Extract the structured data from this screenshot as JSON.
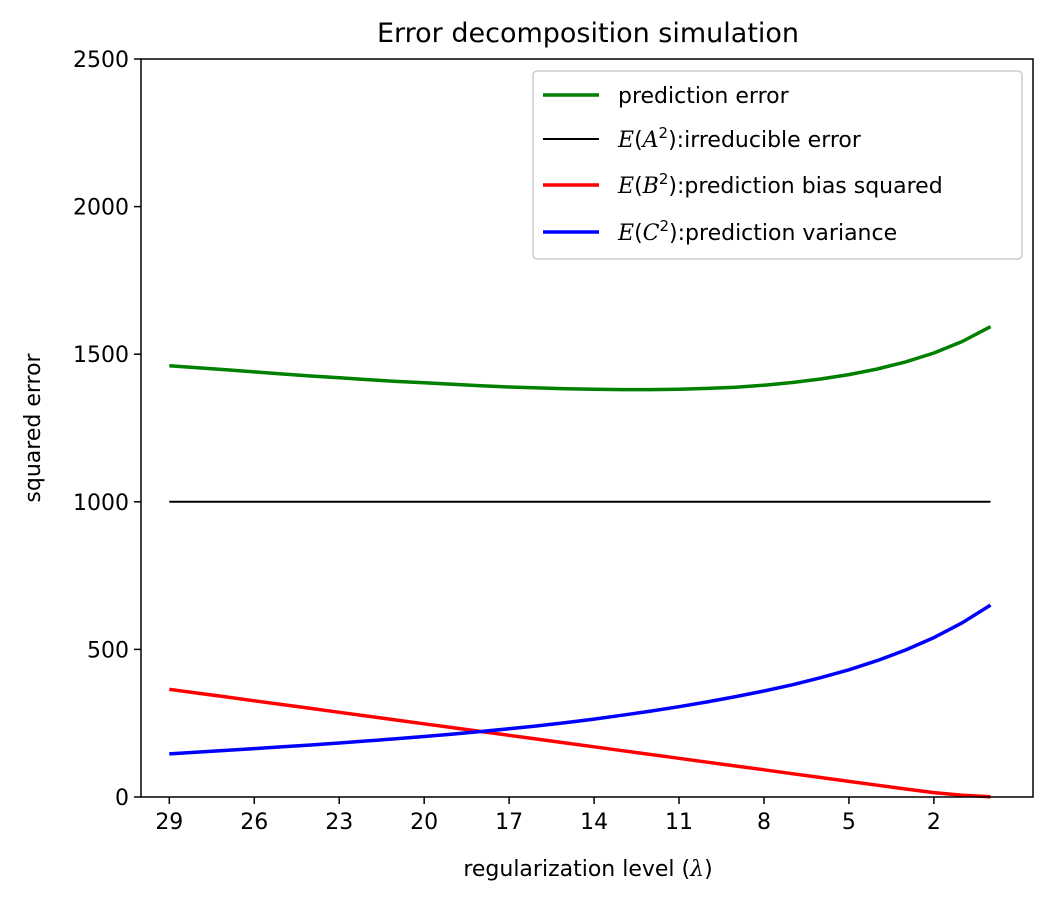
{
  "chart_data": {
    "type": "line",
    "title": "Error decomposition simulation",
    "xlabel": "regularization level (λ)",
    "ylabel": "squared error",
    "x_reversed": true,
    "xlim": [
      30,
      -1.5
    ],
    "ylim": [
      0,
      2500
    ],
    "x_ticks": [
      29,
      26,
      23,
      20,
      17,
      14,
      11,
      8,
      5,
      2
    ],
    "y_ticks": [
      0,
      500,
      1000,
      1500,
      2000,
      2500
    ],
    "grid": false,
    "legend_position": "top-right",
    "x": [
      29,
      28,
      27,
      26,
      25,
      24,
      23,
      22,
      21,
      20,
      19,
      18,
      17,
      16,
      15,
      14,
      13,
      12,
      11,
      10,
      9,
      8,
      7,
      6,
      5,
      4,
      3,
      2,
      1,
      0
    ],
    "series": [
      {
        "name": "prediction error",
        "color": "#008000",
        "values": [
          1461,
          1454,
          1447,
          1440,
          1433,
          1426,
          1420,
          1414,
          1408,
          1403,
          1398,
          1393,
          1389,
          1386,
          1383,
          1381,
          1380,
          1380,
          1381,
          1384,
          1388,
          1395,
          1404,
          1416,
          1431,
          1450,
          1474,
          1504,
          1543,
          1593
        ]
      },
      {
        "name": "E(A²):irreducible error",
        "color": "#000000",
        "values": [
          1000,
          1000,
          1000,
          1000,
          1000,
          1000,
          1000,
          1000,
          1000,
          1000,
          1000,
          1000,
          1000,
          1000,
          1000,
          1000,
          1000,
          1000,
          1000,
          1000,
          1000,
          1000,
          1000,
          1000,
          1000,
          1000,
          1000,
          1000,
          1000,
          1000
        ]
      },
      {
        "name": "E(B²):prediction bias squared",
        "color": "#ff0000",
        "values": [
          365,
          352,
          339,
          326,
          313,
          300,
          287,
          274,
          261,
          248,
          235,
          222,
          209,
          196,
          183,
          170,
          157,
          144,
          131,
          118,
          105,
          92,
          79,
          66,
          53,
          40,
          27,
          15,
          6,
          1
        ]
      },
      {
        "name": "E(C²):prediction variance",
        "color": "#0000ff",
        "values": [
          146,
          152,
          158,
          164,
          170,
          176,
          183,
          190,
          197,
          205,
          213,
          222,
          231,
          241,
          252,
          264,
          277,
          291,
          306,
          322,
          340,
          359,
          380,
          404,
          431,
          462,
          498,
          540,
          590,
          650
        ]
      }
    ],
    "legend_parts": [
      {
        "pre": "prediction error",
        "italic": "",
        "sup": "",
        "post": ""
      },
      {
        "pre": "E(",
        "italic": "A",
        "sup": "2",
        "post": "):irreducible error"
      },
      {
        "pre": "E(",
        "italic": "B",
        "sup": "2",
        "post": "):prediction bias squared"
      },
      {
        "pre": "E(",
        "italic": "C",
        "sup": "2",
        "post": "):prediction variance"
      }
    ]
  }
}
